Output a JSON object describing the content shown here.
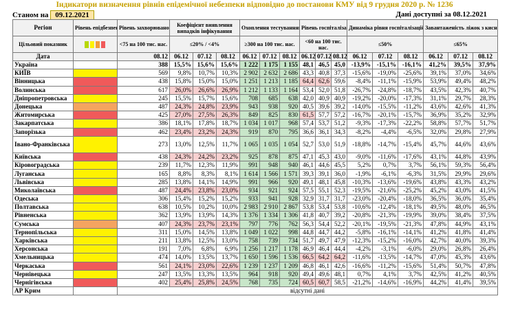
{
  "title": "Індикатори визначення рівнів епідемічної небезпеки відповідно до постанови КМУ від 9 грудня 2020 р. № 1236",
  "subtitle_left": "Станом на",
  "date_box": "09.12.2021",
  "subtitle_right": "Дані доступні за 08.12.2021",
  "header": {
    "region": "Регіон",
    "level": "Рівень епідбезпеки",
    "morbidity": "Рівень захворюваності",
    "coef": "Коефіцієнт виявлення випадків інфікування",
    "testing": "Охоплення тестуванням",
    "hosp": "Рівень госпіталізацій",
    "dynamics": "Динаміка рівня госпіталізацій",
    "oxygen": "Завантаженість ліжок з киснем",
    "target_label": "Цільовий показник",
    "date_label": "Дата",
    "morbidity_target": "<75 на 100 тис. нас.",
    "coef_target": "≤20% / <4%",
    "testing_target": "≥300 на 100 тис. нас.",
    "hosp_target": "<60 на 100 тис. нас.",
    "dynamics_target": "≤50%",
    "oxygen_target": "≤65%"
  },
  "dates": {
    "morbidity": [
      "08.12"
    ],
    "coef": [
      "06.12",
      "07.12",
      "08.12"
    ],
    "testing": [
      "06.12",
      "07.12",
      "08.12"
    ],
    "hosp": [
      "06.12",
      "07.12",
      "08.12"
    ],
    "dynamics": [
      "06.12",
      "07.12",
      "08.12"
    ],
    "oxygen": [
      "06.12",
      "07.12",
      "08.12"
    ]
  },
  "rows": [
    {
      "region": "Україна",
      "level": "",
      "morb": "388",
      "coef": [
        "15,5%",
        "15,6%",
        "15,6%"
      ],
      "test": [
        "1 222",
        "1 175",
        "1 155"
      ],
      "hosp": [
        "48,1",
        "46,5",
        "45,0"
      ],
      "dyn": [
        "-13,9%",
        "-15,1%",
        "-16,1%"
      ],
      "oxy": [
        "41,2%",
        "39,5%",
        "37,9%"
      ],
      "ukr": true
    },
    {
      "region": "КИЇВ",
      "level": "y",
      "morb": "569",
      "coef": [
        "9,8%",
        "10,7%",
        "10,3%"
      ],
      "test": [
        "2 902",
        "2 632",
        "2 686"
      ],
      "hosp": [
        "43,3",
        "40,8",
        "37,3"
      ],
      "dyn": [
        "-15,6%",
        "-19,0%",
        "-25,6%"
      ],
      "oxy": [
        "39,1%",
        "37,0%",
        "34,6%"
      ]
    },
    {
      "region": "Вінницька",
      "level": "rr",
      "morb": "438",
      "coef": [
        "15,8%",
        "15,0%",
        "15,0%"
      ],
      "test": [
        "1 251",
        "1 213",
        "1 185"
      ],
      "hosp": [
        "64,4",
        "62,6",
        "59,6"
      ],
      "dyn": [
        "-8,4%",
        "-11,1%",
        "-15,9%"
      ],
      "oxy": [
        "53,9%",
        "49,4%",
        "48,2%"
      ],
      "hr": [
        1,
        1,
        0
      ]
    },
    {
      "region": "Волинська",
      "level": "rr",
      "morb": "617",
      "coef": [
        "26,0%",
        "26,6%",
        "26,9%"
      ],
      "test": [
        "1 212",
        "1 133",
        "1 164"
      ],
      "hosp": [
        "53,4",
        "52,0",
        "51,8"
      ],
      "dyn": [
        "-26,7%",
        "-24,8%",
        "-18,7%"
      ],
      "oxy": [
        "43,5%",
        "42,3%",
        "40,7%"
      ],
      "cr": [
        1,
        1,
        1
      ]
    },
    {
      "region": "Дніпропетровська",
      "level": "y",
      "morb": "245",
      "coef": [
        "15,5%",
        "15,7%",
        "15,6%"
      ],
      "test": [
        "708",
        "685",
        "638"
      ],
      "hosp": [
        "42,0",
        "40,9",
        "40,9"
      ],
      "dyn": [
        "-19,2%",
        "-20,0%",
        "-17,3%"
      ],
      "oxy": [
        "31,1%",
        "29,7%",
        "28,3%"
      ]
    },
    {
      "region": "Донецька",
      "level": "o",
      "morb": "487",
      "coef": [
        "24,3%",
        "24,8%",
        "23,9%"
      ],
      "test": [
        "943",
        "938",
        "920"
      ],
      "hosp": [
        "40,5",
        "39,6",
        "39,2"
      ],
      "dyn": [
        "-14,0%",
        "-15,5%",
        "-11,2%"
      ],
      "oxy": [
        "43,6%",
        "42,6%",
        "41,3%"
      ],
      "cr": [
        1,
        1,
        1
      ]
    },
    {
      "region": "Житомирська",
      "level": "rr",
      "morb": "425",
      "coef": [
        "27,0%",
        "27,5%",
        "26,3%"
      ],
      "test": [
        "849",
        "825",
        "830"
      ],
      "hosp": [
        "61,5",
        "57,7",
        "57,2"
      ],
      "dyn": [
        "-16,7%",
        "-20,1%",
        "-15,7%"
      ],
      "oxy": [
        "36,9%",
        "35,2%",
        "32,9%"
      ],
      "cr": [
        1,
        1,
        1
      ],
      "hr": [
        1,
        0,
        0
      ]
    },
    {
      "region": "Закарпатська",
      "level": "y",
      "morb": "386",
      "coef": [
        "18,1%",
        "17,8%",
        "18,7%"
      ],
      "test": [
        "1 034",
        "1 017",
        "968"
      ],
      "hosp": [
        "57,4",
        "53,7",
        "51,2"
      ],
      "dyn": [
        "-9,3%",
        "-17,3%",
        "-22,2%"
      ],
      "oxy": [
        "58,8%",
        "57,7%",
        "51,7%"
      ]
    },
    {
      "region": "Запорізька",
      "level": "rr",
      "morb": "462",
      "coef": [
        "23,4%",
        "23,2%",
        "24,3%"
      ],
      "test": [
        "919",
        "870",
        "795"
      ],
      "hosp": [
        "36,6",
        "36,1",
        "34,3"
      ],
      "dyn": [
        "-8,2%",
        "-4,4%",
        "-6,5%"
      ],
      "oxy": [
        "32,0%",
        "29,8%",
        "27,9%"
      ],
      "cr": [
        1,
        1,
        1
      ]
    },
    {
      "region": "Івано-Франківська",
      "level": "y",
      "morb": "273",
      "coef": [
        "13,0%",
        "12,5%",
        "11,7%"
      ],
      "test": [
        "1 065",
        "1 035",
        "1 054"
      ],
      "hosp": [
        "52,7",
        "53,0",
        "51,9"
      ],
      "dyn": [
        "-18,8%",
        "-14,7%",
        "-15,4%"
      ],
      "oxy": [
        "45,7%",
        "44,6%",
        "43,6%"
      ],
      "tall": true
    },
    {
      "region": "Київська",
      "level": "rr",
      "morb": "438",
      "coef": [
        "24,3%",
        "24,2%",
        "23,2%"
      ],
      "test": [
        "925",
        "878",
        "875"
      ],
      "hosp": [
        "47,1",
        "45,3",
        "43,0"
      ],
      "dyn": [
        "-9,0%",
        "-11,6%",
        "-17,6%"
      ],
      "oxy": [
        "43,1%",
        "44,8%",
        "43,9%"
      ],
      "cr": [
        1,
        1,
        1
      ]
    },
    {
      "region": "Кіровоградська",
      "level": "y",
      "morb": "239",
      "coef": [
        "11,7%",
        "12,3%",
        "11,9%"
      ],
      "test": [
        "991",
        "948",
        "940"
      ],
      "hosp": [
        "46,1",
        "44,6",
        "45,5"
      ],
      "dyn": [
        "5,2%",
        "0,7%",
        "3,7%"
      ],
      "oxy": [
        "56,1%",
        "59,3%",
        "56,4%"
      ]
    },
    {
      "region": "Луганська",
      "level": "y",
      "morb": "165",
      "coef": [
        "8,8%",
        "8,3%",
        "8,1%"
      ],
      "test": [
        "1 614",
        "1 566",
        "1 571"
      ],
      "hosp": [
        "39,3",
        "39,1",
        "36,0"
      ],
      "dyn": [
        "-1,9%",
        "-6,1%",
        "-6,3%"
      ],
      "oxy": [
        "31,5%",
        "29,9%",
        "29,6%"
      ]
    },
    {
      "region": "Львівська",
      "level": "y",
      "morb": "285",
      "coef": [
        "13,8%",
        "14,1%",
        "14,9%"
      ],
      "test": [
        "991",
        "966",
        "920"
      ],
      "hosp": [
        "49,1",
        "48,1",
        "45,8"
      ],
      "dyn": [
        "-10,3%",
        "-13,6%",
        "-19,6%"
      ],
      "oxy": [
        "43,8%",
        "43,3%",
        "43,2%"
      ]
    },
    {
      "region": "Миколаївська",
      "level": "rr",
      "morb": "487",
      "coef": [
        "24,4%",
        "23,8%",
        "23,0%"
      ],
      "test": [
        "934",
        "921",
        "924"
      ],
      "hosp": [
        "57,5",
        "55,1",
        "52,3"
      ],
      "dyn": [
        "-19,5%",
        "-21,6%",
        "-25,2%"
      ],
      "oxy": [
        "45,2%",
        "43,0%",
        "41,5%"
      ],
      "cr": [
        1,
        1,
        1
      ]
    },
    {
      "region": "Одеська",
      "level": "y",
      "morb": "306",
      "coef": [
        "15,4%",
        "15,2%",
        "15,2%"
      ],
      "test": [
        "933",
        "941",
        "928"
      ],
      "hosp": [
        "32,9",
        "31,7",
        "31,7"
      ],
      "dyn": [
        "-23,0%",
        "-20,4%",
        "-18,0%"
      ],
      "oxy": [
        "36,5%",
        "36,0%",
        "35,4%"
      ]
    },
    {
      "region": "Полтавська",
      "level": "y",
      "morb": "638",
      "coef": [
        "10,5%",
        "10,2%",
        "10,0%"
      ],
      "test": [
        "2 983",
        "2 910",
        "2 867"
      ],
      "hosp": [
        "53,8",
        "53,4",
        "53,8"
      ],
      "dyn": [
        "-10,6%",
        "-12,4%",
        "-18,1%"
      ],
      "oxy": [
        "49,5%",
        "48,0%",
        "46,5%"
      ]
    },
    {
      "region": "Рівненська",
      "level": "y",
      "morb": "362",
      "coef": [
        "13,9%",
        "13,9%",
        "14,3%"
      ],
      "test": [
        "1 376",
        "1 334",
        "1 306"
      ],
      "hosp": [
        "41,8",
        "40,7",
        "39,2"
      ],
      "dyn": [
        "-20,8%",
        "-21,3%",
        "-19,9%"
      ],
      "oxy": [
        "39,0%",
        "38,4%",
        "37,5%"
      ]
    },
    {
      "region": "Сумська",
      "level": "o",
      "morb": "407",
      "coef": [
        "24,3%",
        "23,7%",
        "23,1%"
      ],
      "test": [
        "797",
        "776",
        "762"
      ],
      "hosp": [
        "56,3",
        "54,4",
        "52,2"
      ],
      "dyn": [
        "-20,1%",
        "-19,5%",
        "-21,3%"
      ],
      "oxy": [
        "47,8%",
        "44,9%",
        "43,1%"
      ],
      "cr": [
        1,
        1,
        1
      ]
    },
    {
      "region": "Тернопільська",
      "level": "y",
      "morb": "311",
      "coef": [
        "15,0%",
        "14,5%",
        "13,8%"
      ],
      "test": [
        "1 049",
        "1 022",
        "998"
      ],
      "hosp": [
        "44,8",
        "44,7",
        "44,2"
      ],
      "dyn": [
        "-5,8%",
        "-16,1%",
        "-14,1%"
      ],
      "oxy": [
        "41,2%",
        "41,8%",
        "41,4%"
      ]
    },
    {
      "region": "Харківська",
      "level": "y",
      "morb": "211",
      "coef": [
        "13,8%",
        "12,5%",
        "13,0%"
      ],
      "test": [
        "758",
        "739",
        "734"
      ],
      "hosp": [
        "51,7",
        "49,7",
        "47,9"
      ],
      "dyn": [
        "-12,3%",
        "-15,2%",
        "-16,0%"
      ],
      "oxy": [
        "42,7%",
        "40,0%",
        "39,3%"
      ]
    },
    {
      "region": "Херсонська",
      "level": "y",
      "morb": "191",
      "coef": [
        "7,0%",
        "6,8%",
        "6,9%"
      ],
      "test": [
        "1 256",
        "1 217",
        "1 178"
      ],
      "hosp": [
        "46,9",
        "46,4",
        "44,4"
      ],
      "dyn": [
        "-4,2%",
        "-3,1%",
        "-6,0%"
      ],
      "oxy": [
        "29,0%",
        "26,8%",
        "26,4%"
      ]
    },
    {
      "region": "Хмельницька",
      "level": "y",
      "morb": "474",
      "coef": [
        "14,0%",
        "13,5%",
        "13,7%"
      ],
      "test": [
        "1 650",
        "1 596",
        "1 536"
      ],
      "hosp": [
        "66,5",
        "64,2",
        "64,2"
      ],
      "dyn": [
        "-11,6%",
        "-13,5%",
        "-14,7%"
      ],
      "oxy": [
        "47,0%",
        "45,3%",
        "43,6%"
      ],
      "hr": [
        1,
        1,
        1
      ]
    },
    {
      "region": "Черкаська",
      "level": "rr",
      "morb": "561",
      "coef": [
        "24,1%",
        "23,0%",
        "22,6%"
      ],
      "test": [
        "1 239",
        "1 237",
        "1 209"
      ],
      "hosp": [
        "46,8",
        "46,1",
        "42,6"
      ],
      "dyn": [
        "-16,6%",
        "-11,2%",
        "-15,6%"
      ],
      "oxy": [
        "51,4%",
        "50,7%",
        "47,8%"
      ],
      "cr": [
        1,
        1,
        1
      ]
    },
    {
      "region": "Чернівецька",
      "level": "y",
      "morb": "247",
      "coef": [
        "13,5%",
        "13,3%",
        "13,5%"
      ],
      "test": [
        "964",
        "918",
        "920"
      ],
      "hosp": [
        "49,4",
        "49,6",
        "48,1"
      ],
      "dyn": [
        "0,7%",
        "4,1%",
        "3,7%"
      ],
      "oxy": [
        "42,5%",
        "41,2%",
        "40,5%"
      ]
    },
    {
      "region": "Чернігівська",
      "level": "rr",
      "morb": "402",
      "coef": [
        "25,4%",
        "25,8%",
        "24,5%"
      ],
      "test": [
        "768",
        "735",
        "724"
      ],
      "hosp": [
        "60,5",
        "60,7",
        "58,5"
      ],
      "dyn": [
        "-21,2%",
        "-14,6%",
        "-16,9%"
      ],
      "oxy": [
        "44,2%",
        "41,4%",
        "39,5%"
      ],
      "cr": [
        1,
        1,
        1
      ],
      "hr": [
        1,
        1,
        0
      ]
    }
  ],
  "crimea": {
    "region": "АР Крим",
    "note": "відсутні дані"
  }
}
